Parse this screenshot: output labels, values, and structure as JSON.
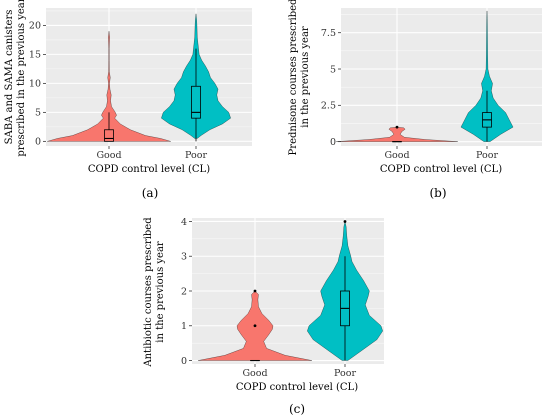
{
  "colors": {
    "good": "#F8766D",
    "poor": "#00BFC4",
    "panel_bg": "#EBEBEB",
    "grid": "#FFFFFF",
    "box": "#000000"
  },
  "chart_data": [
    {
      "id": "a",
      "type": "violin",
      "panel_label": "(a)",
      "xlabel": "COPD control level (CL)",
      "ylabel": [
        "SABA and SAMA canisters",
        "prescribed in the previous year"
      ],
      "categories": [
        "Good",
        "Poor"
      ],
      "ylim": [
        -0.8,
        23
      ],
      "yticks": [
        0,
        5,
        10,
        15,
        20
      ],
      "series": [
        {
          "category": "Good",
          "color": "#F8766D",
          "box": {
            "min": 0,
            "q1": 0,
            "median": 0.5,
            "q3": 2,
            "max": 5
          },
          "outliers": [],
          "density": [
            [
              0,
              0.98
            ],
            [
              0.5,
              0.82
            ],
            [
              1,
              0.58
            ],
            [
              2,
              0.34
            ],
            [
              3,
              0.18
            ],
            [
              4,
              0.09
            ],
            [
              4.5,
              0.12
            ],
            [
              5,
              0.1
            ],
            [
              6,
              0.04
            ],
            [
              7,
              0.025
            ],
            [
              8,
              0.035
            ],
            [
              9,
              0.015
            ],
            [
              10,
              0.008
            ],
            [
              11,
              0.02
            ],
            [
              12,
              0.006
            ],
            [
              14,
              0.004
            ],
            [
              16,
              0.004
            ],
            [
              18,
              0.01
            ],
            [
              19,
              0
            ]
          ]
        },
        {
          "category": "Poor",
          "color": "#00BFC4",
          "box": {
            "min": 0,
            "q1": 4,
            "median": 5,
            "q3": 9.5,
            "max": 16
          },
          "outliers": [],
          "density": [
            [
              0.5,
              0.02
            ],
            [
              1,
              0.08
            ],
            [
              2,
              0.22
            ],
            [
              3,
              0.42
            ],
            [
              4,
              0.55
            ],
            [
              5,
              0.52
            ],
            [
              6,
              0.42
            ],
            [
              7,
              0.35
            ],
            [
              8,
              0.33
            ],
            [
              9,
              0.35
            ],
            [
              10,
              0.3
            ],
            [
              11,
              0.23
            ],
            [
              12,
              0.2
            ],
            [
              13,
              0.15
            ],
            [
              14,
              0.09
            ],
            [
              15,
              0.05
            ],
            [
              16,
              0.04
            ],
            [
              17,
              0.03
            ],
            [
              18,
              0.02
            ],
            [
              20,
              0.015
            ],
            [
              21,
              0.01
            ],
            [
              22,
              0
            ]
          ]
        }
      ]
    },
    {
      "id": "b",
      "type": "violin",
      "panel_label": "(b)",
      "xlabel": "COPD control level (CL)",
      "ylabel": [
        "Prednisone courses prescribed",
        "in the previous year"
      ],
      "categories": [
        "Good",
        "Poor"
      ],
      "ylim": [
        -0.3,
        9.2
      ],
      "yticks": [
        0,
        2.5,
        5,
        7.5
      ],
      "series": [
        {
          "category": "Good",
          "color": "#F8766D",
          "box": {
            "min": 0,
            "q1": 0,
            "median": 0,
            "q3": 0,
            "max": 0
          },
          "outliers": [
            1
          ],
          "density": [
            [
              0,
              0.98
            ],
            [
              0.15,
              0.45
            ],
            [
              0.3,
              0.12
            ],
            [
              0.5,
              0.05
            ],
            [
              0.7,
              0.08
            ],
            [
              0.85,
              0.13
            ],
            [
              0.95,
              0.11
            ],
            [
              1,
              0
            ]
          ]
        },
        {
          "category": "Poor",
          "color": "#00BFC4",
          "box": {
            "min": 0,
            "q1": 1,
            "median": 1.5,
            "q3": 2,
            "max": 3.5
          },
          "outliers": [],
          "density": [
            [
              0,
              0.05
            ],
            [
              0.5,
              0.22
            ],
            [
              1,
              0.42
            ],
            [
              1.5,
              0.36
            ],
            [
              2,
              0.3
            ],
            [
              2.5,
              0.18
            ],
            [
              3,
              0.1
            ],
            [
              3.5,
              0.07
            ],
            [
              4,
              0.09
            ],
            [
              4.5,
              0.04
            ],
            [
              5,
              0.015
            ],
            [
              6,
              0.01
            ],
            [
              7,
              0.008
            ],
            [
              8,
              0.006
            ],
            [
              8.5,
              0.004
            ],
            [
              9,
              0
            ]
          ]
        }
      ]
    },
    {
      "id": "c",
      "type": "violin",
      "panel_label": "(c)",
      "xlabel": "COPD control level (CL)",
      "ylabel": [
        "Antibiotic courses prescribed",
        "in the previous year"
      ],
      "categories": [
        "Good",
        "Poor"
      ],
      "ylim": [
        -0.1,
        4.1
      ],
      "yticks": [
        0,
        1,
        2,
        3,
        4
      ],
      "series": [
        {
          "category": "Good",
          "color": "#F8766D",
          "box": {
            "min": 0,
            "q1": 0,
            "median": 0,
            "q3": 0,
            "max": 0
          },
          "outliers": [
            1,
            2
          ],
          "density": [
            [
              0,
              0.98
            ],
            [
              0.15,
              0.52
            ],
            [
              0.35,
              0.2
            ],
            [
              0.55,
              0.15
            ],
            [
              0.75,
              0.24
            ],
            [
              0.9,
              0.3
            ],
            [
              1,
              0.31
            ],
            [
              1.15,
              0.24
            ],
            [
              1.35,
              0.12
            ],
            [
              1.55,
              0.06
            ],
            [
              1.75,
              0.05
            ],
            [
              1.9,
              0.06
            ],
            [
              2,
              0
            ]
          ]
        },
        {
          "category": "Poor",
          "color": "#00BFC4",
          "box": {
            "min": 0,
            "q1": 1,
            "median": 1.5,
            "q3": 2,
            "max": 3
          },
          "outliers": [
            4
          ],
          "density": [
            [
              0,
              0.05
            ],
            [
              0.3,
              0.3
            ],
            [
              0.6,
              0.55
            ],
            [
              0.85,
              0.65
            ],
            [
              1,
              0.62
            ],
            [
              1.3,
              0.42
            ],
            [
              1.6,
              0.35
            ],
            [
              1.85,
              0.4
            ],
            [
              2,
              0.42
            ],
            [
              2.3,
              0.32
            ],
            [
              2.6,
              0.2
            ],
            [
              2.85,
              0.12
            ],
            [
              3,
              0.1
            ],
            [
              3.3,
              0.05
            ],
            [
              3.6,
              0.03
            ],
            [
              3.85,
              0.02
            ],
            [
              4,
              0
            ]
          ]
        }
      ]
    }
  ]
}
